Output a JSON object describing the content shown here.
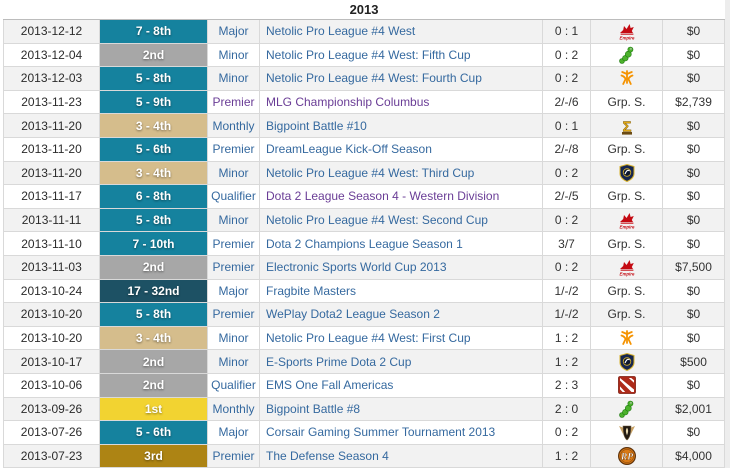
{
  "year_header": "2013",
  "palette": {
    "teal": "#15829e",
    "silver": "#a7a7a7",
    "sand": "#d5bd8c",
    "darkteal": "#1d5164",
    "gold": "#f2d331",
    "bronze": "#ad8414",
    "link_blue": "#35699f",
    "link_purple": "#6a3d96",
    "body_text": "#333333",
    "stripe": "#f2f2f2"
  },
  "rows": [
    {
      "date": "2013-12-12",
      "place": "7 - 8th",
      "place_color": "teal",
      "tier": "Major",
      "tier_color": "blue",
      "tournament": "Netolic Pro League #4 West",
      "tournament_color": "blue",
      "score": "0 : 1",
      "opponent": {
        "type": "icon",
        "icon": "team-empire-icon"
      },
      "prize": "$0"
    },
    {
      "date": "2013-12-04",
      "place": "2nd",
      "place_color": "silver",
      "tier": "Minor",
      "tier_color": "blue",
      "tournament": "Netolic Pro League #4 West: Fifth Cup",
      "tournament_color": "blue",
      "score": "0 : 2",
      "opponent": {
        "type": "icon",
        "icon": "caterpillar-icon"
      },
      "prize": "$0"
    },
    {
      "date": "2013-12-03",
      "place": "5 - 8th",
      "place_color": "teal",
      "tier": "Minor",
      "tier_color": "blue",
      "tournament": "Netolic Pro League #4 West: Fourth Cup",
      "tournament_color": "blue",
      "score": "0 : 2",
      "opponent": {
        "type": "icon",
        "icon": "fnatic-icon"
      },
      "prize": "$0"
    },
    {
      "date": "2013-11-23",
      "place": "5 - 9th",
      "place_color": "teal",
      "tier": "Premier",
      "tier_color": "purple",
      "tournament": "MLG Championship Columbus",
      "tournament_color": "purple",
      "score": "2/-/6",
      "opponent": {
        "type": "text",
        "label": "Grp. S."
      },
      "prize": "$2,739"
    },
    {
      "date": "2013-11-20",
      "place": "3 - 4th",
      "place_color": "sand",
      "tier": "Monthly",
      "tier_color": "blue",
      "tournament": "Bigpoint Battle #10",
      "tournament_color": "blue",
      "score": "0 : 1",
      "opponent": {
        "type": "icon",
        "icon": "sigma-icon"
      },
      "prize": "$0"
    },
    {
      "date": "2013-11-20",
      "place": "5 - 6th",
      "place_color": "teal",
      "tier": "Premier",
      "tier_color": "blue",
      "tournament": "DreamLeague Kick-Off Season",
      "tournament_color": "blue",
      "score": "2/-/8",
      "opponent": {
        "type": "text",
        "label": "Grp. S."
      },
      "prize": "$0"
    },
    {
      "date": "2013-11-20",
      "place": "3 - 4th",
      "place_color": "sand",
      "tier": "Minor",
      "tier_color": "blue",
      "tournament": "Netolic Pro League #4 West: Third Cup",
      "tournament_color": "blue",
      "score": "0 : 2",
      "opponent": {
        "type": "icon",
        "icon": "crest-icon"
      },
      "prize": "$0"
    },
    {
      "date": "2013-11-17",
      "place": "6 - 8th",
      "place_color": "teal",
      "tier": "Qualifier",
      "tier_color": "blue",
      "tournament": "Dota 2 League Season 4 - Western Division",
      "tournament_color": "purple",
      "score": "2/-/5",
      "opponent": {
        "type": "text",
        "label": "Grp. S."
      },
      "prize": "$0"
    },
    {
      "date": "2013-11-11",
      "place": "5 - 8th",
      "place_color": "teal",
      "tier": "Minor",
      "tier_color": "blue",
      "tournament": "Netolic Pro League #4 West: Second Cup",
      "tournament_color": "blue",
      "score": "0 : 2",
      "opponent": {
        "type": "icon",
        "icon": "team-empire-icon"
      },
      "prize": "$0"
    },
    {
      "date": "2013-11-10",
      "place": "7 - 10th",
      "place_color": "teal",
      "tier": "Premier",
      "tier_color": "blue",
      "tournament": "Dota 2 Champions League Season 1",
      "tournament_color": "blue",
      "score": "3/7",
      "opponent": {
        "type": "text",
        "label": "Grp. S."
      },
      "prize": "$0"
    },
    {
      "date": "2013-11-03",
      "place": "2nd",
      "place_color": "silver",
      "tier": "Premier",
      "tier_color": "blue",
      "tournament": "Electronic Sports World Cup 2013",
      "tournament_color": "blue",
      "score": "0 : 2",
      "opponent": {
        "type": "icon",
        "icon": "team-empire-icon"
      },
      "prize": "$7,500"
    },
    {
      "date": "2013-10-24",
      "place": "17 - 32nd",
      "place_color": "darkteal",
      "tier": "Major",
      "tier_color": "blue",
      "tournament": "Fragbite Masters",
      "tournament_color": "blue",
      "score": "1/-/2",
      "opponent": {
        "type": "text",
        "label": "Grp. S."
      },
      "prize": "$0"
    },
    {
      "date": "2013-10-20",
      "place": "5 - 8th",
      "place_color": "teal",
      "tier": "Premier",
      "tier_color": "blue",
      "tournament": "WePlay Dota2 League Season 2",
      "tournament_color": "blue",
      "score": "1/-/2",
      "opponent": {
        "type": "text",
        "label": "Grp. S."
      },
      "prize": "$0"
    },
    {
      "date": "2013-10-20",
      "place": "3 - 4th",
      "place_color": "sand",
      "tier": "Minor",
      "tier_color": "blue",
      "tournament": "Netolic Pro League #4 West: First Cup",
      "tournament_color": "blue",
      "score": "1 : 2",
      "opponent": {
        "type": "icon",
        "icon": "fnatic-icon"
      },
      "prize": "$0"
    },
    {
      "date": "2013-10-17",
      "place": "2nd",
      "place_color": "silver",
      "tier": "Minor",
      "tier_color": "blue",
      "tournament": "E-Sports Prime Dota 2 Cup",
      "tournament_color": "blue",
      "score": "1 : 2",
      "opponent": {
        "type": "icon",
        "icon": "crest-icon"
      },
      "prize": "$500"
    },
    {
      "date": "2013-10-06",
      "place": "2nd",
      "place_color": "silver",
      "tier": "Qualifier",
      "tier_color": "blue",
      "tournament": "EMS One Fall Americas",
      "tournament_color": "blue",
      "score": "2 : 3",
      "opponent": {
        "type": "icon",
        "icon": "dota2-icon"
      },
      "prize": "$0"
    },
    {
      "date": "2013-09-26",
      "place": "1st",
      "place_color": "gold",
      "tier": "Monthly",
      "tier_color": "blue",
      "tournament": "Bigpoint Battle #8",
      "tournament_color": "blue",
      "score": "2 : 0",
      "opponent": {
        "type": "icon",
        "icon": "caterpillar-icon"
      },
      "prize": "$2,001"
    },
    {
      "date": "2013-07-26",
      "place": "5 - 6th",
      "place_color": "teal",
      "tier": "Major",
      "tier_color": "blue",
      "tournament": "Corsair Gaming Summer Tournament 2013",
      "tournament_color": "blue",
      "score": "0 : 2",
      "opponent": {
        "type": "icon",
        "icon": "winged-crest-icon"
      },
      "prize": "$0"
    },
    {
      "date": "2013-07-23",
      "place": "3rd",
      "place_color": "bronze",
      "tier": "Premier",
      "tier_color": "blue",
      "tournament": "The Defense Season 4",
      "tournament_color": "blue",
      "score": "1 : 2",
      "opponent": {
        "type": "icon",
        "icon": "rp-ball-icon"
      },
      "prize": "$4,000"
    }
  ]
}
